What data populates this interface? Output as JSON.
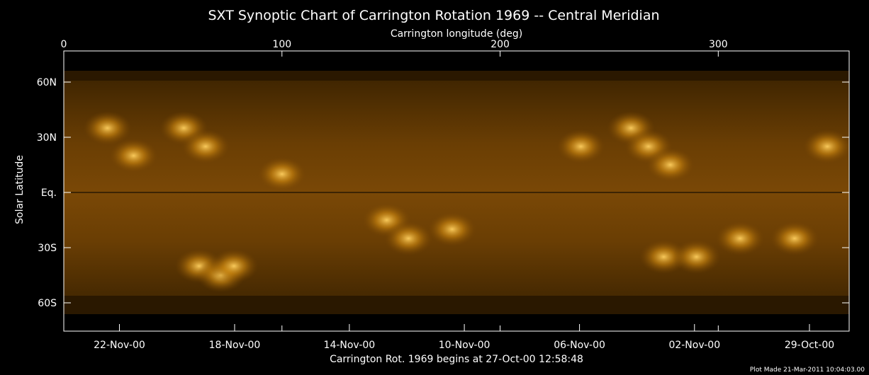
{
  "chart_data": {
    "type": "heatmap",
    "title": "SXT Synoptic Chart of Carrington Rotation 1969 -- Central Meridian",
    "top_axis": {
      "label": "Carrington longitude (deg)",
      "range": [
        0,
        360
      ],
      "ticks": [
        {
          "value": 0,
          "label": "0"
        },
        {
          "value": 100,
          "label": "100"
        },
        {
          "value": 200,
          "label": "200"
        },
        {
          "value": 300,
          "label": "300"
        }
      ]
    },
    "y_axis": {
      "label": "Solar Latitude",
      "range": [
        -90,
        90
      ],
      "ticks": [
        {
          "value": 60,
          "label": "60N"
        },
        {
          "value": 30,
          "label": "30N"
        },
        {
          "value": 0,
          "label": "Eq."
        },
        {
          "value": -30,
          "label": "30S"
        },
        {
          "value": -60,
          "label": "60S"
        }
      ]
    },
    "bottom_axis": {
      "label": "Carrington Rot. 1969 begins at 27-Oct-00 12:58:48",
      "ticks": [
        {
          "value": 25.5,
          "label": "22-Nov-00"
        },
        {
          "value": 78.3,
          "label": "18-Nov-00"
        },
        {
          "value": 130.9,
          "label": "14-Nov-00"
        },
        {
          "value": 183.6,
          "label": "10-Nov-00"
        },
        {
          "value": 236.4,
          "label": "06-Nov-00"
        },
        {
          "value": 289.1,
          "label": "02-Nov-00"
        },
        {
          "value": 341.8,
          "label": "29-Oct-00"
        }
      ]
    },
    "equator_line": true,
    "colormap": {
      "low": "#000000",
      "mid": "#7a4600",
      "high": "#ffcc55"
    },
    "data_extent_latitude": [
      -82,
      82
    ],
    "bright_regions": [
      {
        "lon": 20,
        "lat": 35
      },
      {
        "lon": 32,
        "lat": 20
      },
      {
        "lon": 55,
        "lat": 35
      },
      {
        "lon": 65,
        "lat": 25
      },
      {
        "lon": 62,
        "lat": -40
      },
      {
        "lon": 72,
        "lat": -45
      },
      {
        "lon": 78,
        "lat": -40
      },
      {
        "lon": 100,
        "lat": 10
      },
      {
        "lon": 148,
        "lat": -15
      },
      {
        "lon": 158,
        "lat": -25
      },
      {
        "lon": 178,
        "lat": -20
      },
      {
        "lon": 237,
        "lat": 25
      },
      {
        "lon": 260,
        "lat": 35
      },
      {
        "lon": 268,
        "lat": 25
      },
      {
        "lon": 278,
        "lat": 15
      },
      {
        "lon": 275,
        "lat": -35
      },
      {
        "lon": 290,
        "lat": -35
      },
      {
        "lon": 310,
        "lat": -25
      },
      {
        "lon": 335,
        "lat": -25
      },
      {
        "lon": 350,
        "lat": 25
      }
    ]
  },
  "footer": {
    "plot_made": "Plot Made 21-Mar-2011 10:04:03.00"
  }
}
